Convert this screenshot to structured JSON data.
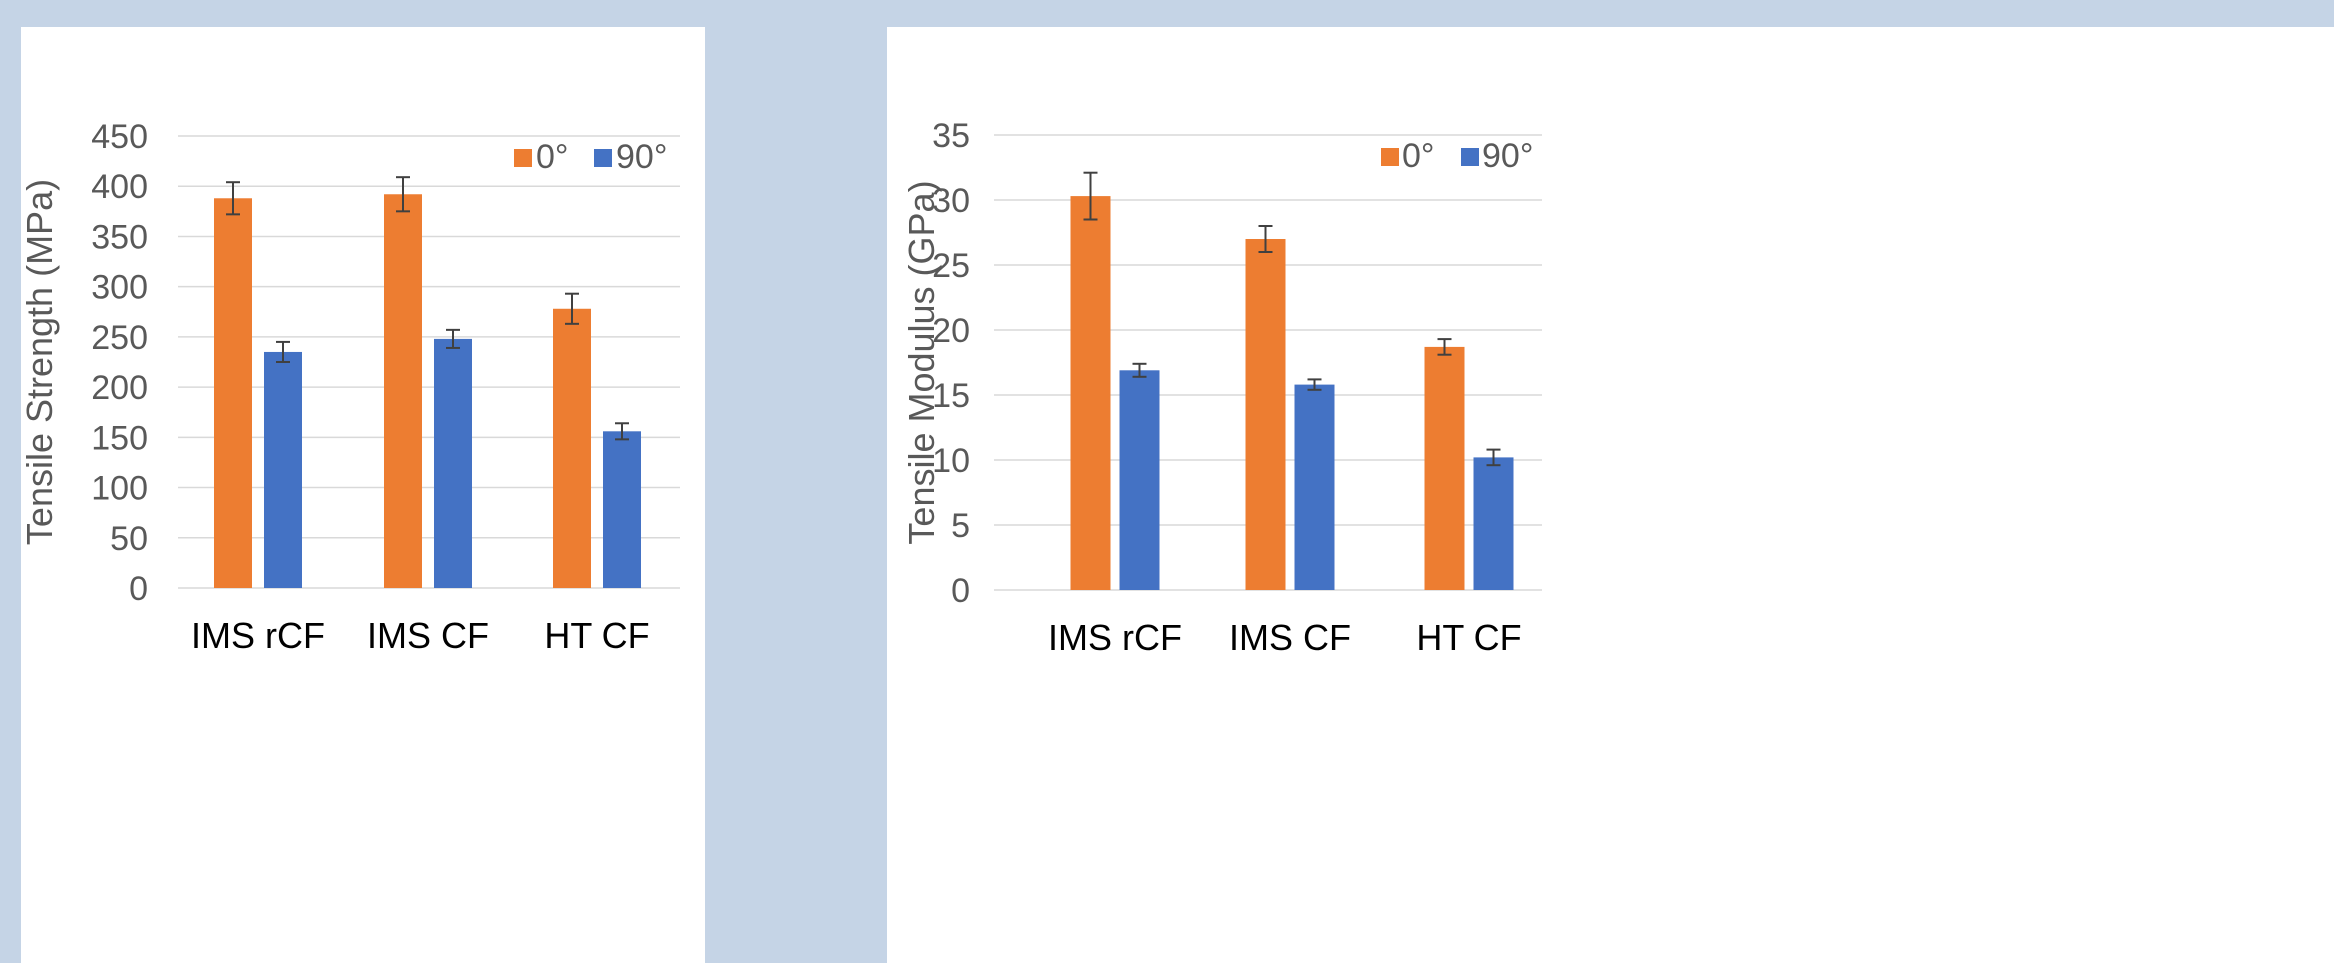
{
  "colors": {
    "page_bg": "#c5d4e6",
    "series_0": "#ed7d31",
    "series_90": "#4472c4",
    "grid": "#d9d9d9",
    "error_bar": "#404040"
  },
  "chart_data": [
    {
      "type": "bar",
      "ylabel": "Tensile Strength (MPa)",
      "xlabel": "",
      "categories": [
        "IMS rCF",
        "IMS CF",
        "HT CF"
      ],
      "ylim": [
        0,
        450
      ],
      "yticks": [
        0,
        50,
        100,
        150,
        200,
        250,
        300,
        350,
        400,
        450
      ],
      "grid": true,
      "legend_position": "top-right",
      "series": [
        {
          "name": "0°",
          "values": [
            388,
            392,
            278
          ],
          "errors": [
            16,
            17,
            15
          ]
        },
        {
          "name": "90°",
          "values": [
            235,
            248,
            156
          ],
          "errors": [
            10,
            9,
            8
          ]
        }
      ]
    },
    {
      "type": "bar",
      "ylabel": "Tensile Modulus (GPa)",
      "xlabel": "",
      "categories": [
        "IMS rCF",
        "IMS CF",
        "HT CF"
      ],
      "ylim": [
        0,
        35
      ],
      "yticks": [
        0,
        5,
        10,
        15,
        20,
        25,
        30,
        35
      ],
      "grid": true,
      "legend_position": "top-right",
      "series": [
        {
          "name": "0°",
          "values": [
            30.3,
            27,
            18.7
          ],
          "errors": [
            1.8,
            1.0,
            0.6
          ]
        },
        {
          "name": "90°",
          "values": [
            16.9,
            15.8,
            10.2
          ],
          "errors": [
            0.5,
            0.4,
            0.6
          ]
        }
      ]
    }
  ]
}
